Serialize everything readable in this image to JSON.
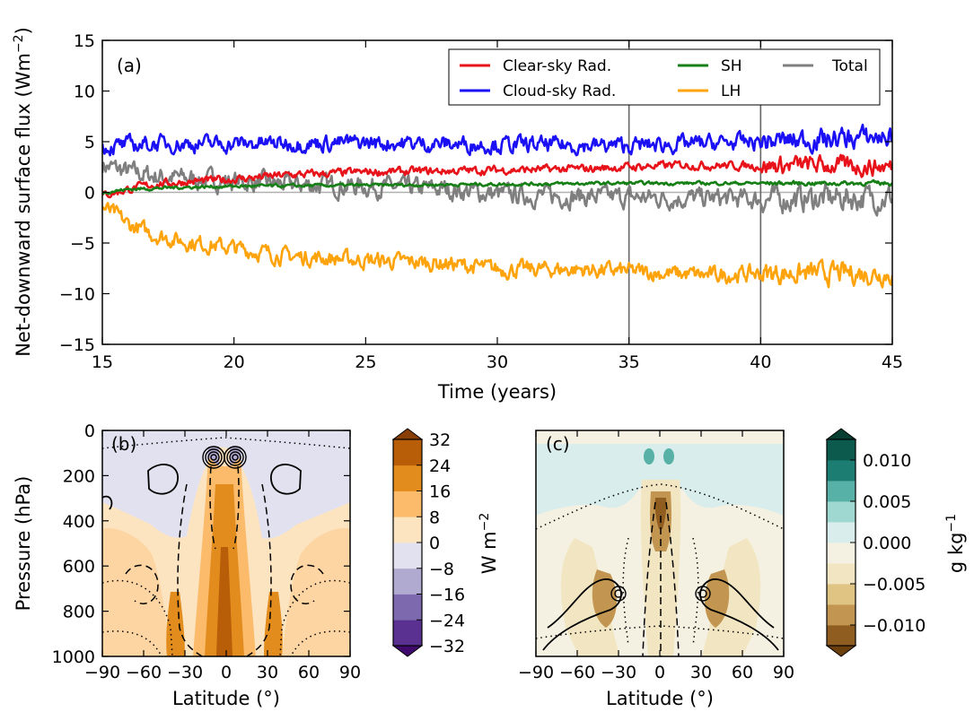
{
  "chart_data": [
    {
      "panel": "(a)",
      "type": "line",
      "xlabel": "Time (years)",
      "ylabel_main": "Net-downward surface flux (Wm",
      "ylabel_exp": "−2",
      "ylabel_close": ")",
      "xlim": [
        15,
        45
      ],
      "ylim": [
        -15,
        15
      ],
      "xticks": [
        "15",
        "20",
        "25",
        "30",
        "35",
        "40",
        "45"
      ],
      "yticks": [
        "15",
        "10",
        "5",
        "0",
        "−5",
        "−10",
        "−15"
      ],
      "vlines": [
        35,
        40
      ],
      "zero_line": true,
      "legend_position": "top-right",
      "series": [
        {
          "name": "Clear-sky Rad.",
          "color": "#e8131a",
          "x": [
            15,
            16,
            17,
            18,
            20,
            22,
            25,
            28,
            30,
            33,
            35,
            37,
            40,
            42,
            45
          ],
          "y": [
            -0.3,
            0.3,
            0.8,
            1.0,
            1.3,
            1.7,
            2.0,
            2.1,
            2.2,
            2.3,
            2.5,
            2.7,
            2.6,
            2.7,
            2.5
          ]
        },
        {
          "name": "Cloud-sky Rad.",
          "color": "#1a0ff5",
          "x": [
            15,
            17,
            20,
            25,
            30,
            35,
            40,
            45
          ],
          "y": [
            4.5,
            4.8,
            4.8,
            4.9,
            4.7,
            4.6,
            5.0,
            5.5
          ]
        },
        {
          "name": "SH",
          "color": "#167f16",
          "x": [
            15,
            16,
            18,
            20,
            25,
            30,
            35,
            40,
            45
          ],
          "y": [
            0.0,
            0.3,
            0.5,
            0.6,
            0.7,
            0.8,
            0.9,
            0.9,
            0.9
          ]
        },
        {
          "name": "LH",
          "color": "#ffa30b",
          "x": [
            15,
            15.5,
            16,
            17,
            18,
            20,
            22,
            25,
            28,
            30,
            33,
            35,
            38,
            40,
            42,
            45
          ],
          "y": [
            -1.5,
            -2.2,
            -3.2,
            -4.2,
            -4.8,
            -5.5,
            -6.3,
            -6.7,
            -7.0,
            -7.6,
            -7.6,
            -7.8,
            -8.2,
            -8.0,
            -8.0,
            -8.0
          ]
        },
        {
          "name": "Total",
          "color": "#7f7f7f",
          "x": [
            15,
            16,
            17,
            18,
            20,
            22,
            25,
            28,
            30,
            33,
            35,
            38,
            40,
            42,
            45
          ],
          "y": [
            2.7,
            2.0,
            1.6,
            1.4,
            1.1,
            0.8,
            0.6,
            0.3,
            -0.2,
            -0.4,
            -0.5,
            -0.6,
            -0.7,
            -0.6,
            -0.5
          ]
        }
      ]
    },
    {
      "panel": "(b)",
      "type": "heatmap",
      "xlabel": "Latitude (°)",
      "ylabel": "Pressure (hPa)",
      "xlim": [
        -90,
        90
      ],
      "ylim": [
        1000,
        0
      ],
      "xticks": [
        "−90",
        "−60",
        "−30",
        "0",
        "30",
        "60",
        "90"
      ],
      "yticks": [
        "0",
        "200",
        "400",
        "600",
        "800",
        "1000"
      ],
      "colorbar": {
        "label_main": "W m",
        "label_exp": "−2",
        "ticks": [
          "32",
          "24",
          "16",
          "8",
          "0",
          "−8",
          "−16",
          "−24",
          "−32"
        ],
        "levels": [
          -32,
          -24,
          -16,
          -8,
          0,
          8,
          16,
          24,
          32
        ],
        "colors": [
          "#3f0a6b",
          "#5a3190",
          "#7d69ad",
          "#b1aad0",
          "#e2e1ef",
          "#fde4c1",
          "#fbbb6b",
          "#e28c1e",
          "#b85d08",
          "#8a3f06"
        ]
      }
    },
    {
      "panel": "(c)",
      "type": "heatmap",
      "xlabel": "Latitude (°)",
      "xlim": [
        -90,
        90
      ],
      "ylim": [
        1000,
        0
      ],
      "xticks": [
        "−90",
        "−60",
        "−30",
        "0",
        "30",
        "60",
        "90"
      ],
      "colorbar": {
        "label_main": "g kg",
        "label_exp": "−1",
        "ticks": [
          "0.010",
          "0.005",
          "0.000",
          "−0.005",
          "−0.010"
        ],
        "levels": [
          -0.0125,
          -0.01,
          -0.0075,
          -0.005,
          -0.0025,
          0,
          0.0025,
          0.005,
          0.0075,
          0.01,
          0.0125
        ],
        "colors": [
          "#6b3f0d",
          "#905d20",
          "#c29650",
          "#dfc484",
          "#f2e6c2",
          "#f5f1e2",
          "#d9eeec",
          "#9fd8d0",
          "#58b1a6",
          "#1c7e73",
          "#0c5a4e",
          "#063e32"
        ]
      }
    }
  ]
}
